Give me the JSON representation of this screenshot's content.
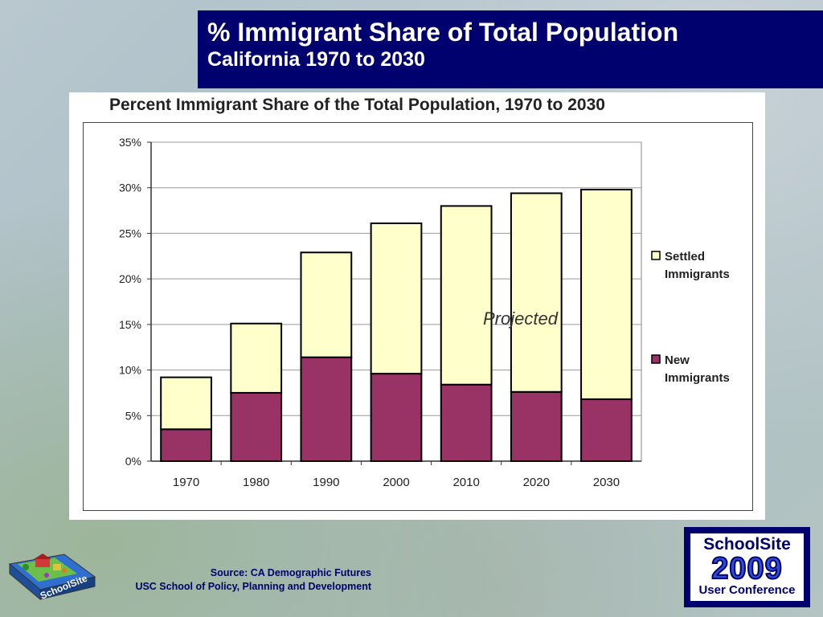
{
  "slide": {
    "title": "% Immigrant Share of Total Population",
    "subtitle": "California 1970 to 2030",
    "source_line1": "Source:  CA Demographic Futures",
    "source_line2": "USC School of Policy, Planning and Development"
  },
  "logo": {
    "text": "SchoolSite"
  },
  "badge": {
    "top": "SchoolSite",
    "year": "2009",
    "bottom": "User Conference"
  },
  "chart_data": {
    "type": "bar",
    "stacked": true,
    "title": "Percent Immigrant Share of the Total Population, 1970 to 2030",
    "categories": [
      "1970",
      "1980",
      "1990",
      "2000",
      "2010",
      "2020",
      "2030"
    ],
    "series": [
      {
        "name": "New Immigrants",
        "values": [
          3.5,
          7.5,
          11.4,
          9.6,
          8.4,
          7.6,
          6.8
        ],
        "color": "#993366"
      },
      {
        "name": "Settled Immigrants",
        "values": [
          5.7,
          7.6,
          11.5,
          16.5,
          19.6,
          21.8,
          23.0
        ],
        "color": "#ffffcc"
      }
    ],
    "legend_labels": [
      {
        "line1": "Settled",
        "line2": "Immigrants"
      },
      {
        "line1": "New",
        "line2": "Immigrants"
      }
    ],
    "legend_position": "right",
    "yticks": [
      "0%",
      "5%",
      "10%",
      "15%",
      "20%",
      "25%",
      "30%",
      "35%"
    ],
    "ylim": [
      0,
      35
    ],
    "annotation": "Projected",
    "grid": true
  }
}
